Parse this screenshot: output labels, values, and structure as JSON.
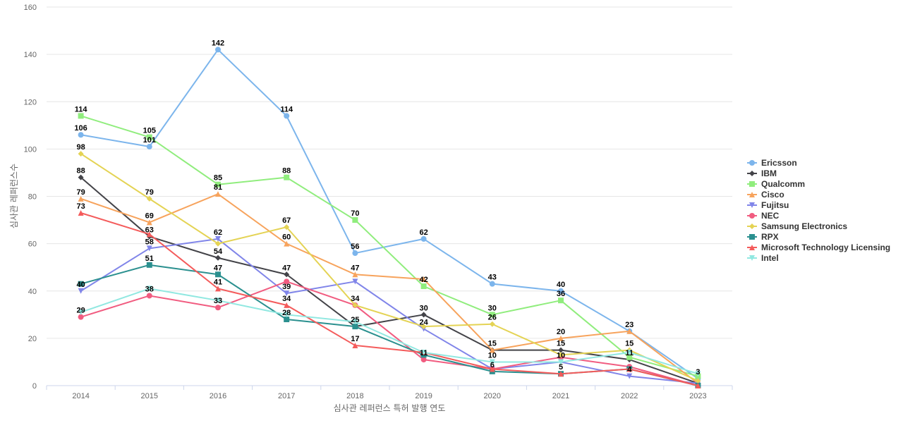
{
  "chart_data": {
    "type": "line",
    "title": "",
    "xlabel": "심사관 레퍼런스 특허 발행 연도",
    "ylabel": "심사관 레퍼런스수",
    "ylim": [
      0,
      160
    ],
    "yticks": [
      0,
      20,
      40,
      60,
      80,
      100,
      120,
      140,
      160
    ],
    "grid": true,
    "legend_position": "right",
    "categories": [
      "2014",
      "2015",
      "2016",
      "2017",
      "2018",
      "2019",
      "2020",
      "2021",
      "2022",
      "2023"
    ],
    "series": [
      {
        "name": "Ericsson",
        "color": "#7cb5ec",
        "marker": "circle",
        "values": [
          106,
          101,
          142,
          114,
          56,
          62,
          43,
          40,
          23,
          3
        ]
      },
      {
        "name": "IBM",
        "color": "#434348",
        "marker": "diamond",
        "values": [
          88,
          63,
          54,
          47,
          25,
          30,
          15,
          15,
          11,
          1
        ]
      },
      {
        "name": "Qualcomm",
        "color": "#90ed7d",
        "marker": "square",
        "values": [
          114,
          105,
          85,
          88,
          70,
          42,
          30,
          36,
          12,
          4
        ]
      },
      {
        "name": "Cisco",
        "color": "#f7a35c",
        "marker": "triangle",
        "values": [
          79,
          69,
          81,
          60,
          47,
          45,
          15,
          20,
          23,
          1
        ]
      },
      {
        "name": "Fujitsu",
        "color": "#8085e9",
        "marker": "triangle-down",
        "values": [
          40,
          58,
          62,
          39,
          44,
          24,
          7,
          10,
          4,
          1
        ]
      },
      {
        "name": "NEC",
        "color": "#f15c80",
        "marker": "circle",
        "values": [
          29,
          38,
          33,
          44,
          34,
          11,
          7,
          12,
          8,
          0
        ]
      },
      {
        "name": "Samsung Electronics",
        "color": "#e4d354",
        "marker": "diamond",
        "values": [
          98,
          79,
          60,
          67,
          34,
          25,
          26,
          13,
          15,
          2
        ]
      },
      {
        "name": "RPX",
        "color": "#2b908f",
        "marker": "square",
        "values": [
          43,
          51,
          47,
          28,
          25,
          13,
          6,
          5,
          7,
          0
        ]
      },
      {
        "name": "Microsoft Technology Licensing",
        "color": "#f45b5b",
        "marker": "triangle",
        "values": [
          73,
          64,
          41,
          34,
          17,
          14,
          7,
          5,
          7,
          0
        ]
      },
      {
        "name": "Intel",
        "color": "#91e8e1",
        "marker": "triangle-down",
        "values": [
          31,
          41,
          36,
          30,
          27,
          14,
          10,
          10,
          14,
          5
        ]
      }
    ],
    "data_labels": [
      {
        "category": "2014",
        "text": "114",
        "value": 114
      },
      {
        "category": "2014",
        "text": "106",
        "value": 106
      },
      {
        "category": "2014",
        "text": "98",
        "value": 98
      },
      {
        "category": "2014",
        "text": "88",
        "value": 88
      },
      {
        "category": "2014",
        "text": "79",
        "value": 79
      },
      {
        "category": "2014",
        "text": "73",
        "value": 73
      },
      {
        "category": "2014",
        "text": "40",
        "value": 40
      },
      {
        "category": "2014",
        "text": "29",
        "value": 29
      },
      {
        "category": "2015",
        "text": "105",
        "value": 105
      },
      {
        "category": "2015",
        "text": "101",
        "value": 101
      },
      {
        "category": "2015",
        "text": "79",
        "value": 79
      },
      {
        "category": "2015",
        "text": "69",
        "value": 69
      },
      {
        "category": "2015",
        "text": "63",
        "value": 63
      },
      {
        "category": "2015",
        "text": "58",
        "value": 58
      },
      {
        "category": "2015",
        "text": "51",
        "value": 51
      },
      {
        "category": "2015",
        "text": "38",
        "value": 38
      },
      {
        "category": "2016",
        "text": "142",
        "value": 142
      },
      {
        "category": "2016",
        "text": "85",
        "value": 85
      },
      {
        "category": "2016",
        "text": "81",
        "value": 81
      },
      {
        "category": "2016",
        "text": "62",
        "value": 62
      },
      {
        "category": "2016",
        "text": "54",
        "value": 54
      },
      {
        "category": "2016",
        "text": "47",
        "value": 47
      },
      {
        "category": "2016",
        "text": "41",
        "value": 41
      },
      {
        "category": "2016",
        "text": "33",
        "value": 33
      },
      {
        "category": "2017",
        "text": "114",
        "value": 114
      },
      {
        "category": "2017",
        "text": "88",
        "value": 88
      },
      {
        "category": "2017",
        "text": "67",
        "value": 67
      },
      {
        "category": "2017",
        "text": "60",
        "value": 60
      },
      {
        "category": "2017",
        "text": "47",
        "value": 47
      },
      {
        "category": "2017",
        "text": "39",
        "value": 39
      },
      {
        "category": "2017",
        "text": "34",
        "value": 34
      },
      {
        "category": "2017",
        "text": "28",
        "value": 28
      },
      {
        "category": "2018",
        "text": "70",
        "value": 70
      },
      {
        "category": "2018",
        "text": "56",
        "value": 56
      },
      {
        "category": "2018",
        "text": "47",
        "value": 47
      },
      {
        "category": "2018",
        "text": "34",
        "value": 34
      },
      {
        "category": "2018",
        "text": "25",
        "value": 25
      },
      {
        "category": "2018",
        "text": "17",
        "value": 17
      },
      {
        "category": "2019",
        "text": "62",
        "value": 62
      },
      {
        "category": "2019",
        "text": "42",
        "value": 42
      },
      {
        "category": "2019",
        "text": "30",
        "value": 30
      },
      {
        "category": "2019",
        "text": "24",
        "value": 24
      },
      {
        "category": "2019",
        "text": "11",
        "value": 11
      },
      {
        "category": "2020",
        "text": "43",
        "value": 43
      },
      {
        "category": "2020",
        "text": "30",
        "value": 30
      },
      {
        "category": "2020",
        "text": "26",
        "value": 26
      },
      {
        "category": "2020",
        "text": "15",
        "value": 15
      },
      {
        "category": "2020",
        "text": "10",
        "value": 10
      },
      {
        "category": "2020",
        "text": "6",
        "value": 6
      },
      {
        "category": "2021",
        "text": "40",
        "value": 40
      },
      {
        "category": "2021",
        "text": "36",
        "value": 36
      },
      {
        "category": "2021",
        "text": "20",
        "value": 20
      },
      {
        "category": "2021",
        "text": "15",
        "value": 15
      },
      {
        "category": "2021",
        "text": "10",
        "value": 10
      },
      {
        "category": "2021",
        "text": "5",
        "value": 5
      },
      {
        "category": "2022",
        "text": "23",
        "value": 23
      },
      {
        "category": "2022",
        "text": "15",
        "value": 15
      },
      {
        "category": "2022",
        "text": "11",
        "value": 11
      },
      {
        "category": "2022",
        "text": "4",
        "value": 4
      },
      {
        "category": "2023",
        "text": "3",
        "value": 3
      }
    ]
  }
}
